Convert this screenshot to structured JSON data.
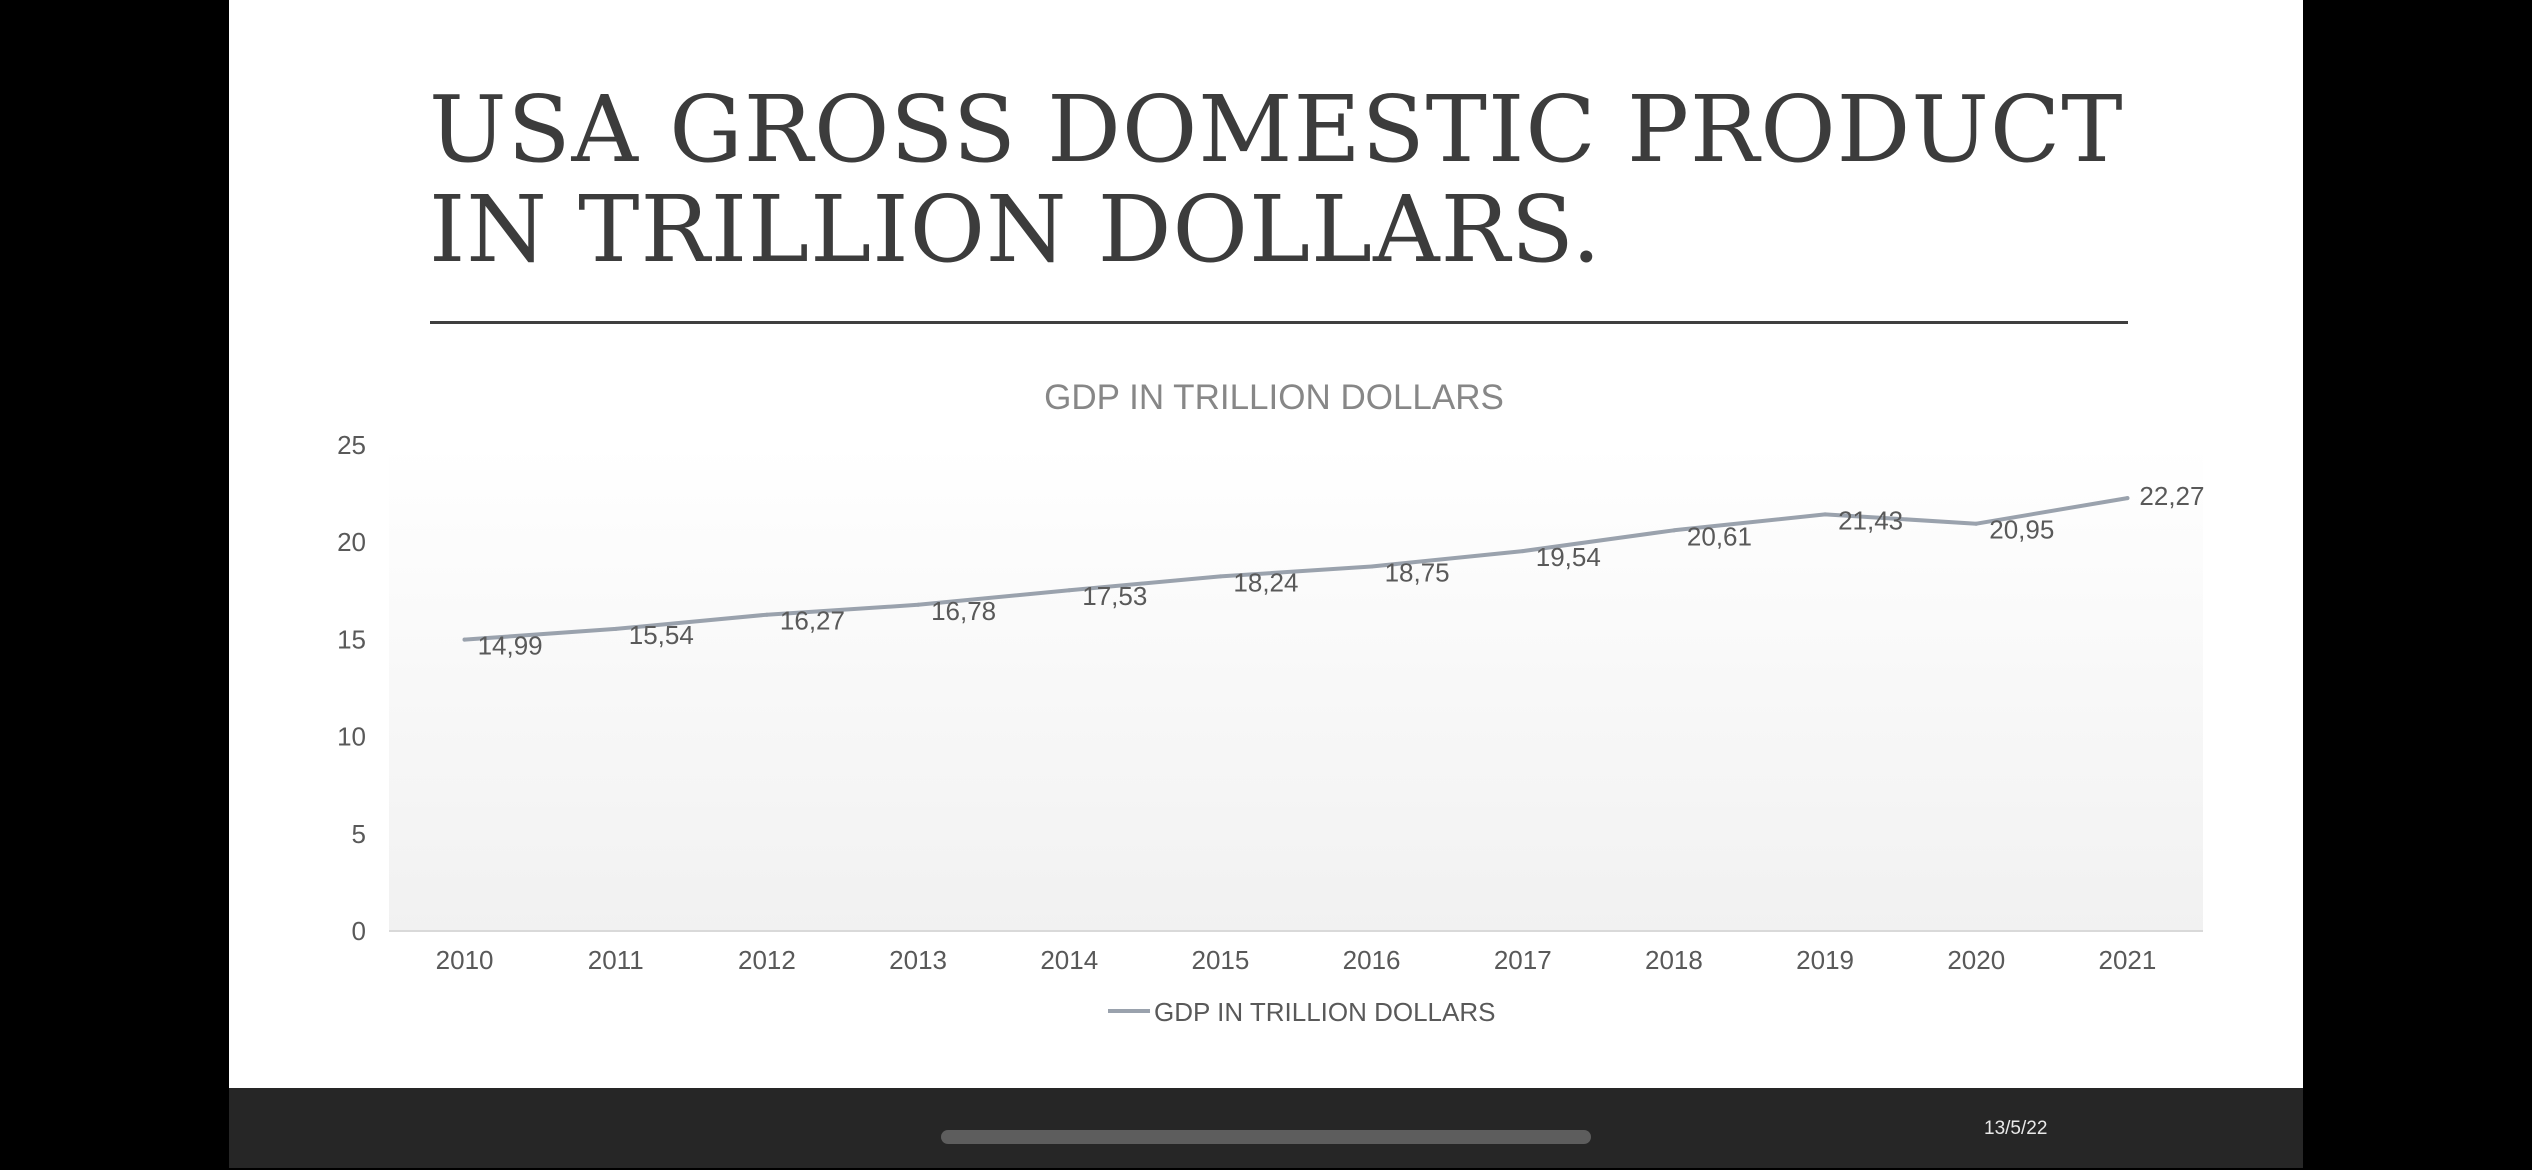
{
  "slide": {
    "title": "USA GROSS DOMESTIC PRODUCT IN TRILLION DOLLARS."
  },
  "footer": {
    "date": "13/5/22"
  },
  "colors": {
    "line": "#9aa2ad",
    "title_text": "#3c3c3c",
    "chart_title": "#878787",
    "axis_text": "#595959",
    "bottom_bar": "#262626"
  },
  "chart_data": {
    "type": "line",
    "title": "GDP IN TRILLION DOLLARS",
    "xlabel": "",
    "ylabel": "",
    "categories": [
      "2010",
      "2011",
      "2012",
      "2013",
      "2014",
      "2015",
      "2016",
      "2017",
      "2018",
      "2019",
      "2020",
      "2021"
    ],
    "series": [
      {
        "name": "GDP IN TRILLION DOLLARS",
        "values": [
          14.99,
          15.54,
          16.27,
          16.78,
          17.53,
          18.24,
          18.75,
          19.54,
          20.61,
          21.43,
          20.95,
          22.27
        ],
        "labels": [
          "14,99",
          "15,54",
          "16,27",
          "16,78",
          "17,53",
          "18,24",
          "18,75",
          "19,54",
          "20,61",
          "21,43",
          "20,95",
          "22,27"
        ]
      }
    ],
    "ylim": [
      0,
      25
    ],
    "yticks": [
      "0",
      "5",
      "10",
      "15",
      "20",
      "25"
    ],
    "grid": false,
    "legend": "bottom"
  }
}
